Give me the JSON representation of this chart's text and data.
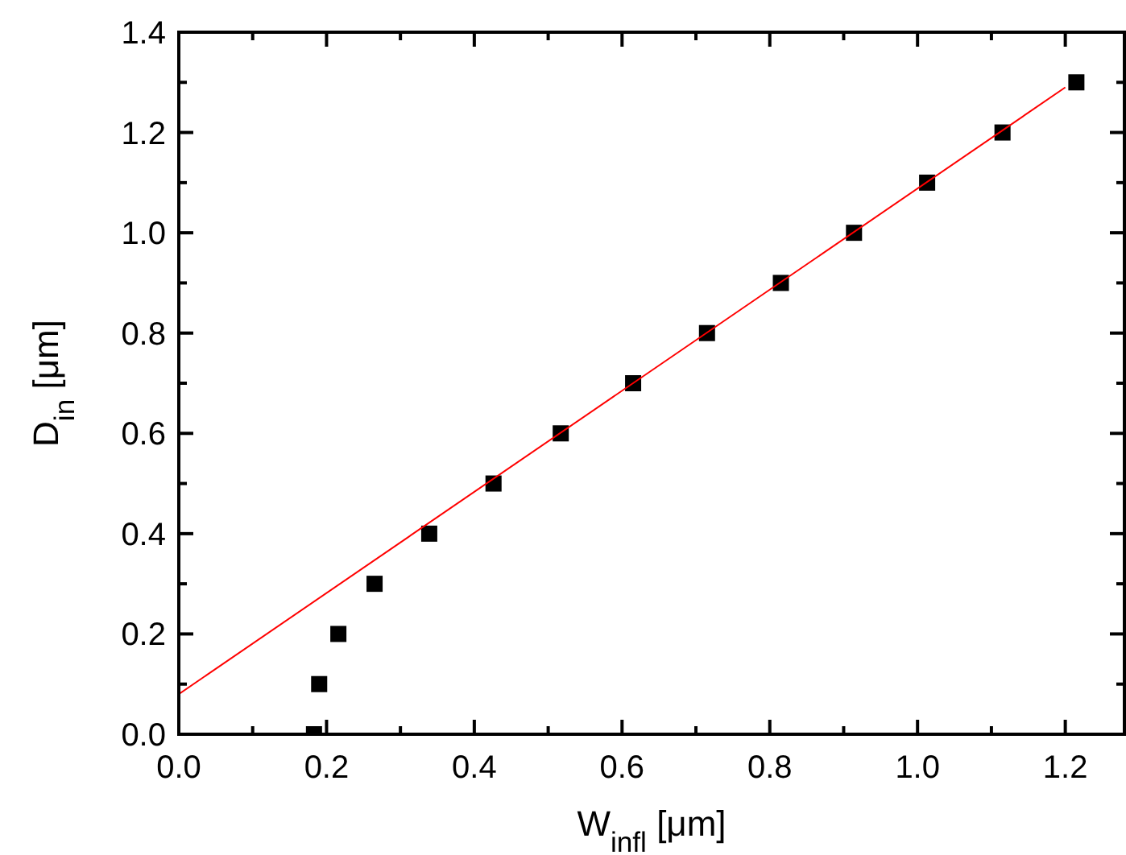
{
  "chart_data": {
    "type": "scatter",
    "xlabel": "W$_{infl}$ [μm]",
    "ylabel": "D$_{in}$ [μm]",
    "xlim": [
      0,
      1.28
    ],
    "ylim": [
      0,
      1.4
    ],
    "xticks": [
      {
        "value": 0,
        "label": "0.0"
      },
      {
        "value": 0.1,
        "label": null
      },
      {
        "value": 0.2,
        "label": "0.2"
      },
      {
        "value": 0.3,
        "label": null
      },
      {
        "value": 0.4,
        "label": "0.4"
      },
      {
        "value": 0.5,
        "label": null
      },
      {
        "value": 0.6,
        "label": "0.6"
      },
      {
        "value": 0.7,
        "label": null
      },
      {
        "value": 0.8,
        "label": "0.8"
      },
      {
        "value": 0.9,
        "label": null
      },
      {
        "value": 1,
        "label": "1.0"
      },
      {
        "value": 1.1,
        "label": null
      },
      {
        "value": 1.2,
        "label": "1.2"
      }
    ],
    "yticks": [
      {
        "value": 0,
        "label": "0.0"
      },
      {
        "value": 0.1,
        "label": null
      },
      {
        "value": 0.2,
        "label": "0.2"
      },
      {
        "value": 0.3,
        "label": null
      },
      {
        "value": 0.4,
        "label": "0.4"
      },
      {
        "value": 0.5,
        "label": null
      },
      {
        "value": 0.6,
        "label": "0.6"
      },
      {
        "value": 0.7,
        "label": null
      },
      {
        "value": 0.8,
        "label": "0.8"
      },
      {
        "value": 0.9,
        "label": null
      },
      {
        "value": 1,
        "label": "1.0"
      },
      {
        "value": 1.1,
        "label": null
      },
      {
        "value": 1.2,
        "label": "1.2"
      },
      {
        "value": 1.3,
        "label": null
      },
      {
        "value": 1.4,
        "label": "1.4"
      }
    ],
    "grid": false,
    "marker": "square",
    "series": [
      {
        "color": "#000000",
        "x": [
          0.183,
          0.19,
          0.216,
          0.265,
          0.339,
          0.426,
          0.517,
          0.615,
          0.715,
          0.815,
          0.914,
          1.013,
          1.115,
          1.215
        ],
        "values": [
          0,
          0.1,
          0.2,
          0.3,
          0.4,
          0.5,
          0.6,
          0.7,
          0.8,
          0.9,
          1.0,
          1.1,
          1.2,
          1.3
        ]
      },
      {
        "type": "line",
        "color": "#ff0000",
        "marker": "none",
        "line_style": "solid",
        "x": [
          0,
          1.2
        ],
        "values": [
          0.08,
          1.29
        ]
      }
    ]
  }
}
